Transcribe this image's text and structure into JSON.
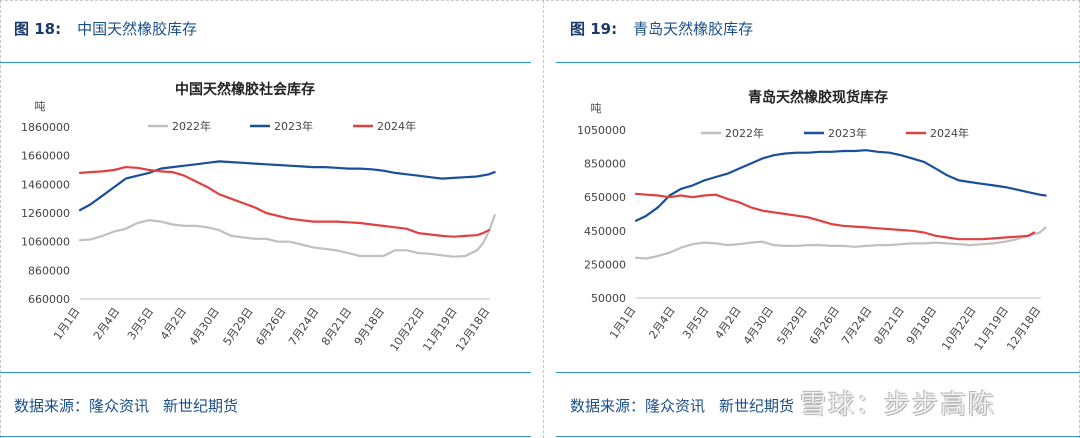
{
  "panels": [
    {
      "fig_num": "图 18:",
      "fig_title": "中国天然橡胶库存",
      "source_label": "数据来源：",
      "source_a": "隆众资讯",
      "source_b": "新世纪期货"
    },
    {
      "fig_num": "图 19:",
      "fig_title": "青岛天然橡胶库存",
      "source_label": "数据来源：",
      "source_a": "隆众资讯",
      "source_b": "新世纪期货"
    }
  ],
  "watermark": "雪球：步步高陈",
  "chart_data": [
    {
      "type": "line",
      "title": "中国天然橡胶社会库存",
      "ylabel": "吨",
      "ylim": [
        660000,
        1860000
      ],
      "yticks": [
        660000,
        860000,
        1060000,
        1260000,
        1460000,
        1660000,
        1860000
      ],
      "xlim": [
        1,
        351
      ],
      "xticks": [
        {
          "x": 1,
          "label": "1月1日"
        },
        {
          "x": 35,
          "label": "2月4日"
        },
        {
          "x": 64,
          "label": "3月5日"
        },
        {
          "x": 92,
          "label": "4月2日"
        },
        {
          "x": 120,
          "label": "4月30日"
        },
        {
          "x": 149,
          "label": "5月29日"
        },
        {
          "x": 177,
          "label": "6月26日"
        },
        {
          "x": 205,
          "label": "7月24日"
        },
        {
          "x": 233,
          "label": "8月21日"
        },
        {
          "x": 261,
          "label": "9月18日"
        },
        {
          "x": 295,
          "label": "10月22日"
        },
        {
          "x": 323,
          "label": "11月19日"
        },
        {
          "x": 352,
          "label": "12月18日"
        }
      ],
      "series": [
        {
          "name": "2022年",
          "color": "#c0c0c0",
          "x": [
            1,
            10,
            20,
            30,
            40,
            50,
            60,
            70,
            80,
            90,
            100,
            110,
            120,
            130,
            140,
            150,
            160,
            170,
            180,
            190,
            200,
            210,
            220,
            230,
            240,
            250,
            260,
            270,
            280,
            290,
            300,
            310,
            320,
            330,
            340,
            345,
            350,
            355
          ],
          "y": [
            1070000,
            1075000,
            1100000,
            1130000,
            1150000,
            1190000,
            1210000,
            1200000,
            1180000,
            1170000,
            1170000,
            1160000,
            1140000,
            1100000,
            1090000,
            1080000,
            1080000,
            1060000,
            1060000,
            1040000,
            1020000,
            1010000,
            1000000,
            980000,
            960000,
            960000,
            960000,
            1000000,
            1000000,
            980000,
            975000,
            965000,
            955000,
            960000,
            1000000,
            1050000,
            1130000,
            1245000
          ]
        },
        {
          "name": "2023年",
          "color": "#1a4f9a",
          "x": [
            1,
            10,
            20,
            30,
            40,
            50,
            60,
            70,
            80,
            90,
            100,
            110,
            120,
            130,
            140,
            150,
            160,
            170,
            180,
            190,
            200,
            210,
            220,
            230,
            240,
            250,
            260,
            270,
            280,
            290,
            300,
            310,
            320,
            330,
            340,
            350,
            355
          ],
          "y": [
            1280000,
            1320000,
            1380000,
            1440000,
            1500000,
            1520000,
            1540000,
            1570000,
            1580000,
            1590000,
            1600000,
            1610000,
            1620000,
            1615000,
            1610000,
            1605000,
            1600000,
            1595000,
            1590000,
            1585000,
            1580000,
            1580000,
            1575000,
            1570000,
            1570000,
            1565000,
            1555000,
            1540000,
            1530000,
            1520000,
            1510000,
            1500000,
            1505000,
            1510000,
            1515000,
            1530000,
            1545000
          ]
        },
        {
          "name": "2024年",
          "color": "#e04040",
          "x": [
            1,
            10,
            20,
            30,
            40,
            50,
            60,
            70,
            80,
            90,
            100,
            110,
            120,
            130,
            140,
            150,
            160,
            170,
            180,
            190,
            200,
            210,
            220,
            230,
            240,
            250,
            260,
            270,
            280,
            290,
            300,
            310,
            320,
            330,
            340,
            345,
            350
          ],
          "y": [
            1540000,
            1545000,
            1550000,
            1560000,
            1580000,
            1575000,
            1560000,
            1550000,
            1545000,
            1520000,
            1480000,
            1440000,
            1390000,
            1360000,
            1330000,
            1300000,
            1260000,
            1240000,
            1220000,
            1210000,
            1200000,
            1200000,
            1200000,
            1195000,
            1190000,
            1180000,
            1170000,
            1160000,
            1150000,
            1120000,
            1110000,
            1100000,
            1095000,
            1100000,
            1105000,
            1120000,
            1140000
          ]
        }
      ]
    },
    {
      "type": "line",
      "title": "青岛天然橡胶现货库存",
      "ylabel": "吨",
      "ylim": [
        50000,
        1050000
      ],
      "yticks": [
        50000,
        250000,
        450000,
        650000,
        850000,
        1050000
      ],
      "xlim": [
        1,
        351
      ],
      "xticks": [
        {
          "x": 1,
          "label": "1月1日"
        },
        {
          "x": 35,
          "label": "2月4日"
        },
        {
          "x": 64,
          "label": "3月5日"
        },
        {
          "x": 92,
          "label": "4月2日"
        },
        {
          "x": 120,
          "label": "4月30日"
        },
        {
          "x": 149,
          "label": "5月29日"
        },
        {
          "x": 177,
          "label": "6月26日"
        },
        {
          "x": 205,
          "label": "7月24日"
        },
        {
          "x": 233,
          "label": "8月21日"
        },
        {
          "x": 261,
          "label": "9月18日"
        },
        {
          "x": 295,
          "label": "10月22日"
        },
        {
          "x": 323,
          "label": "11月19日"
        },
        {
          "x": 352,
          "label": "12月18日"
        }
      ],
      "series": [
        {
          "name": "2022年",
          "color": "#c0c0c0",
          "x": [
            1,
            10,
            20,
            30,
            40,
            50,
            60,
            70,
            80,
            90,
            100,
            110,
            120,
            130,
            140,
            150,
            160,
            170,
            180,
            190,
            200,
            210,
            220,
            230,
            240,
            250,
            260,
            270,
            280,
            290,
            300,
            310,
            320,
            330,
            340,
            350,
            355
          ],
          "y": [
            290000,
            285000,
            300000,
            320000,
            350000,
            370000,
            380000,
            375000,
            365000,
            370000,
            380000,
            385000,
            365000,
            360000,
            360000,
            365000,
            365000,
            360000,
            360000,
            355000,
            360000,
            365000,
            365000,
            370000,
            375000,
            375000,
            380000,
            375000,
            370000,
            365000,
            370000,
            375000,
            385000,
            400000,
            420000,
            440000,
            470000
          ]
        },
        {
          "name": "2023年",
          "color": "#1a4f9a",
          "x": [
            1,
            10,
            20,
            30,
            40,
            50,
            60,
            70,
            80,
            90,
            100,
            110,
            120,
            130,
            140,
            150,
            160,
            170,
            180,
            190,
            200,
            210,
            220,
            230,
            240,
            250,
            260,
            270,
            280,
            290,
            300,
            310,
            320,
            330,
            340,
            350,
            355
          ],
          "y": [
            510000,
            540000,
            590000,
            660000,
            700000,
            720000,
            750000,
            770000,
            790000,
            820000,
            850000,
            880000,
            900000,
            910000,
            915000,
            915000,
            920000,
            920000,
            925000,
            925000,
            930000,
            920000,
            915000,
            900000,
            880000,
            860000,
            820000,
            780000,
            750000,
            740000,
            730000,
            720000,
            710000,
            695000,
            680000,
            665000,
            660000
          ]
        },
        {
          "name": "2024年",
          "color": "#e04040",
          "x": [
            1,
            10,
            20,
            30,
            40,
            50,
            60,
            70,
            80,
            90,
            100,
            110,
            120,
            130,
            140,
            150,
            160,
            170,
            180,
            190,
            200,
            210,
            220,
            230,
            240,
            250,
            260,
            270,
            280,
            290,
            300,
            310,
            320,
            330,
            340,
            345
          ],
          "y": [
            670000,
            665000,
            660000,
            650000,
            660000,
            650000,
            660000,
            665000,
            640000,
            620000,
            590000,
            570000,
            560000,
            550000,
            540000,
            530000,
            510000,
            490000,
            480000,
            475000,
            470000,
            465000,
            460000,
            455000,
            450000,
            440000,
            420000,
            410000,
            400000,
            400000,
            400000,
            405000,
            410000,
            415000,
            420000,
            440000
          ]
        }
      ]
    }
  ]
}
